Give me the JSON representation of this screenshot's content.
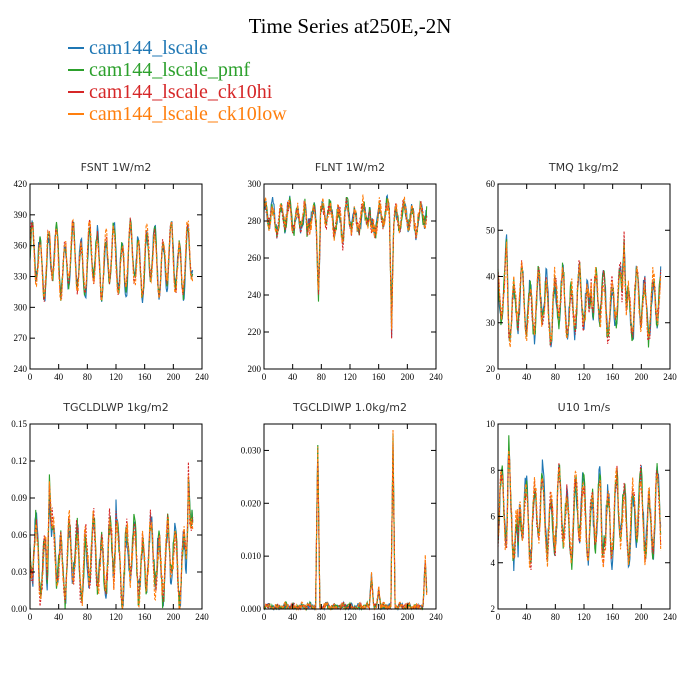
{
  "title": "Time Series at250E,-2N",
  "legend": [
    {
      "name": "cam144_lscale",
      "color": "#1f77b4"
    },
    {
      "name": "cam144_lscale_pmf",
      "color": "#2ca02c"
    },
    {
      "name": "cam144_lscale_ck10hi",
      "color": "#d62728"
    },
    {
      "name": "cam144_lscale_ck10low",
      "color": "#ff7f0e"
    }
  ],
  "chart_data": [
    {
      "type": "line",
      "title": "FSNT   1W/m2",
      "xlim": [
        0,
        240
      ],
      "ylim": [
        240,
        420
      ],
      "xticks": [
        0,
        40,
        80,
        120,
        160,
        200,
        240
      ],
      "yticks": [
        240,
        270,
        300,
        330,
        360,
        390,
        420
      ],
      "yfmt": 0,
      "n": 228,
      "base": 345,
      "amp": 38,
      "noise": 6,
      "spikes": []
    },
    {
      "type": "line",
      "title": "FLNT   1W/m2",
      "xlim": [
        0,
        240
      ],
      "ylim": [
        200,
        300
      ],
      "xticks": [
        0,
        40,
        80,
        120,
        160,
        200,
        240
      ],
      "yticks": [
        200,
        220,
        240,
        260,
        280,
        300
      ],
      "yfmt": 0,
      "n": 228,
      "base": 282,
      "amp": 9,
      "noise": 4,
      "spikes": [
        [
          60,
          -14
        ],
        [
          76,
          -38
        ],
        [
          178,
          -55
        ],
        [
          110,
          -12
        ],
        [
          150,
          -12
        ]
      ]
    },
    {
      "type": "line",
      "title": "TMQ   1kg/m2",
      "xlim": [
        0,
        240
      ],
      "ylim": [
        20,
        60
      ],
      "xticks": [
        0,
        40,
        80,
        120,
        160,
        200,
        240
      ],
      "yticks": [
        20,
        30,
        40,
        50,
        60
      ],
      "yfmt": 0,
      "n": 228,
      "base": 34,
      "amp": 8,
      "noise": 2,
      "spikes": [
        [
          176,
          22
        ],
        [
          12,
          10
        ],
        [
          130,
          12
        ]
      ]
    },
    {
      "type": "line",
      "title": "TGCLDLWP   1kg/m2",
      "xlim": [
        0,
        240
      ],
      "ylim": [
        0,
        0.15
      ],
      "xticks": [
        0,
        40,
        80,
        120,
        160,
        200,
        240
      ],
      "yticks": [
        0,
        0.03,
        0.06,
        0.09,
        0.12,
        0.15
      ],
      "yfmt": 2,
      "n": 228,
      "base": 0.04,
      "amp": 0.035,
      "noise": 0.01,
      "spikes": [
        [
          27,
          0.08
        ],
        [
          221,
          0.09
        ],
        [
          120,
          0.04
        ]
      ]
    },
    {
      "type": "line",
      "title": "TGCLDIWP   1.0kg/m2",
      "xlim": [
        0,
        240
      ],
      "ylim": [
        0,
        0.035
      ],
      "xticks": [
        0,
        40,
        80,
        120,
        160,
        200,
        240
      ],
      "yticks": [
        0,
        0.01,
        0.02,
        0.03
      ],
      "yfmt": 3,
      "n": 228,
      "base": 0.0004,
      "amp": 0.0004,
      "noise": 0.0006,
      "spikes": [
        [
          75,
          0.032
        ],
        [
          180,
          0.034
        ],
        [
          150,
          0.007
        ],
        [
          225,
          0.009
        ],
        [
          160,
          0.004
        ]
      ]
    },
    {
      "type": "line",
      "title": "U10   1m/s",
      "xlim": [
        0,
        240
      ],
      "ylim": [
        2,
        10
      ],
      "xticks": [
        0,
        40,
        80,
        120,
        160,
        200,
        240
      ],
      "yticks": [
        2,
        4,
        6,
        8,
        10
      ],
      "yfmt": 0,
      "n": 228,
      "base": 6,
      "amp": 2,
      "noise": 0.5,
      "spikes": [
        [
          15,
          3
        ],
        [
          28,
          -3
        ],
        [
          145,
          -2
        ]
      ]
    }
  ]
}
